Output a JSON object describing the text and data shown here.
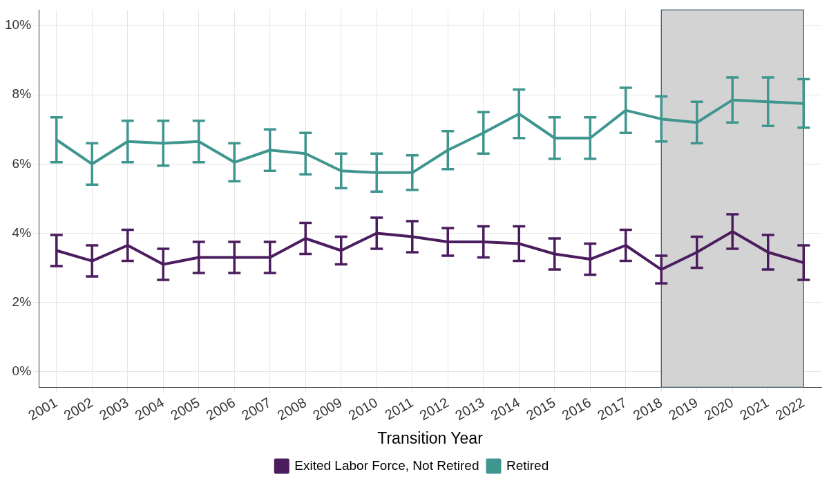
{
  "chart_data": {
    "type": "line",
    "xlabel": "Transition Year",
    "categories": [
      "2001",
      "2002",
      "2003",
      "2004",
      "2005",
      "2006",
      "2007",
      "2008",
      "2009",
      "2010",
      "2011",
      "2012",
      "2013",
      "2014",
      "2015",
      "2016",
      "2017",
      "2018",
      "2019",
      "2020",
      "2021",
      "2022"
    ],
    "series": [
      {
        "name": "Exited Labor Force, Not Retired",
        "color": "#4b1c5e",
        "values": [
          3.5,
          3.2,
          3.65,
          3.1,
          3.3,
          3.3,
          3.3,
          3.85,
          3.5,
          4.0,
          3.9,
          3.75,
          3.75,
          3.7,
          3.4,
          3.25,
          3.65,
          2.95,
          3.45,
          4.05,
          3.45,
          3.15
        ],
        "errors": [
          0.45,
          0.45,
          0.45,
          0.45,
          0.45,
          0.45,
          0.45,
          0.45,
          0.4,
          0.45,
          0.45,
          0.4,
          0.45,
          0.5,
          0.45,
          0.45,
          0.45,
          0.4,
          0.45,
          0.5,
          0.5,
          0.5
        ]
      },
      {
        "name": "Retired",
        "color": "#3f968e",
        "values": [
          6.7,
          6.0,
          6.65,
          6.6,
          6.65,
          6.05,
          6.4,
          6.3,
          5.8,
          5.75,
          5.75,
          6.4,
          6.9,
          7.45,
          6.75,
          6.75,
          7.55,
          7.3,
          7.2,
          7.85,
          7.8,
          7.75
        ],
        "errors": [
          0.65,
          0.6,
          0.6,
          0.65,
          0.6,
          0.55,
          0.6,
          0.6,
          0.5,
          0.55,
          0.5,
          0.55,
          0.6,
          0.7,
          0.6,
          0.6,
          0.65,
          0.65,
          0.6,
          0.65,
          0.7,
          0.7
        ]
      }
    ],
    "ylim": [
      -0.45,
      10.45
    ],
    "yticks": [
      {
        "value": 0,
        "label": "0%"
      },
      {
        "value": 2,
        "label": "2%"
      },
      {
        "value": 4,
        "label": "4%"
      },
      {
        "value": 6,
        "label": "6%"
      },
      {
        "value": 8,
        "label": "8%"
      },
      {
        "value": 10,
        "label": "10%"
      }
    ],
    "bands": [
      {
        "axis": "x",
        "from": "2018",
        "to": "2022",
        "color": "#d3d3d3"
      }
    ],
    "grid": true,
    "legend": "bottom",
    "marker": "none",
    "line_style": "solid"
  }
}
